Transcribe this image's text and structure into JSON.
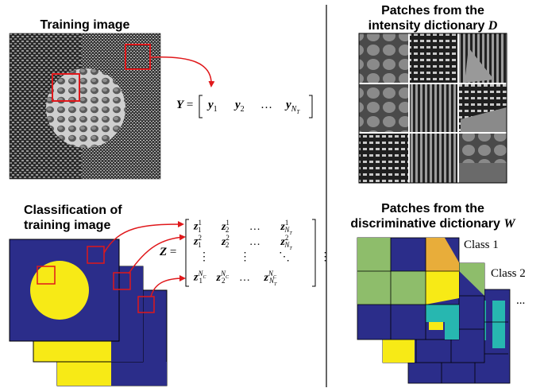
{
  "headings": {
    "training_image": "Training image",
    "intensity_dict_line1": "Patches from the",
    "intensity_dict_line2": "intensity dictionary",
    "intensity_dict_symbol": "D",
    "classification_line1": "Classification of",
    "classification_line2": "training image",
    "discriminative_line1": "Patches from the",
    "discriminative_line2": "discriminative dictionary",
    "discriminative_symbol": "W"
  },
  "equations": {
    "y_lhs": "Y",
    "y_equals": "=",
    "y_entries": [
      "y",
      "y",
      "…",
      "y"
    ],
    "y_subscripts": [
      "1",
      "2",
      "",
      "N"
    ],
    "y_sub_sub": "T",
    "z_lhs": "Z",
    "z_equals": "="
  },
  "z_matrix": {
    "rows": [
      [
        "z",
        "z",
        "…",
        "z"
      ],
      [
        "z",
        "z",
        "…",
        "z"
      ],
      [
        "⋮",
        "⋮",
        "⋱",
        "⋮"
      ],
      [
        "z",
        "z",
        "…",
        "z"
      ]
    ]
  },
  "class_labels": [
    "Class 1",
    "Class 2",
    "..."
  ],
  "colors": {
    "navy": "#2b2d8a",
    "yellow": "#f7ea16",
    "green_patch": "#8ebd6b",
    "orange_patch": "#e8ad3a",
    "teal_patch": "#27b7b0",
    "red_arrow": "#e0181b"
  }
}
